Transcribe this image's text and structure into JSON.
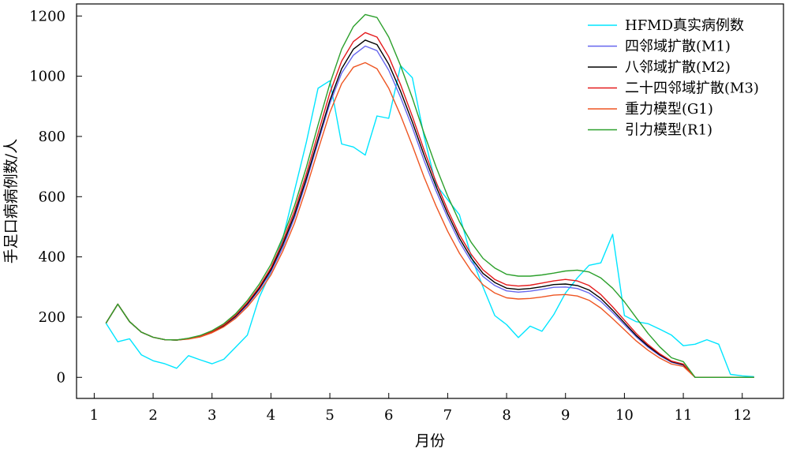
{
  "chart_data": {
    "type": "line",
    "xlabel": "月份",
    "ylabel": "手足口病病例数/人",
    "xlim": [
      0.7,
      12.7
    ],
    "ylim": [
      -70,
      1240
    ],
    "xticks": [
      1,
      2,
      3,
      4,
      5,
      6,
      7,
      8,
      9,
      10,
      11,
      12
    ],
    "yticks": [
      0,
      200,
      400,
      600,
      800,
      1000,
      1200
    ],
    "legend_position": "top-right",
    "grid": false,
    "x": [
      1.2,
      1.4,
      1.6,
      1.8,
      2.0,
      2.2,
      2.4,
      2.6,
      2.8,
      3.0,
      3.2,
      3.4,
      3.6,
      3.8,
      4.0,
      4.2,
      4.4,
      4.6,
      4.8,
      5.0,
      5.2,
      5.4,
      5.6,
      5.8,
      6.0,
      6.2,
      6.4,
      6.6,
      6.8,
      7.0,
      7.2,
      7.4,
      7.6,
      7.8,
      8.0,
      8.2,
      8.4,
      8.6,
      8.8,
      9.0,
      9.2,
      9.4,
      9.6,
      9.8,
      10.0,
      10.2,
      10.4,
      10.6,
      10.8,
      11.0,
      11.2,
      11.4,
      11.6,
      11.8,
      12.0,
      12.2
    ],
    "series": [
      {
        "name": "HFMD真实病例数",
        "color": "#00e5ff",
        "values": [
          180,
          118,
          128,
          75,
          55,
          45,
          30,
          72,
          58,
          45,
          60,
          100,
          140,
          265,
          350,
          460,
          620,
          780,
          960,
          985,
          775,
          765,
          738,
          868,
          860,
          1035,
          995,
          800,
          640,
          590,
          540,
          400,
          300,
          205,
          175,
          132,
          170,
          153,
          208,
          280,
          330,
          372,
          380,
          475,
          205,
          185,
          178,
          160,
          140,
          105,
          110,
          125,
          110,
          10,
          5,
          2
        ]
      },
      {
        "name": "四邻域扩散(M1)",
        "color": "#6666ee",
        "values": [
          180,
          243,
          185,
          150,
          133,
          125,
          124,
          128,
          135,
          150,
          170,
          200,
          240,
          290,
          350,
          430,
          530,
          650,
          780,
          910,
          1010,
          1070,
          1100,
          1085,
          1020,
          930,
          830,
          720,
          620,
          530,
          450,
          385,
          335,
          305,
          287,
          283,
          286,
          292,
          299,
          300,
          295,
          280,
          252,
          215,
          175,
          135,
          100,
          72,
          50,
          40,
          0,
          0,
          0,
          0,
          0,
          0
        ]
      },
      {
        "name": "八邻域扩散(M2)",
        "color": "#000000",
        "values": [
          180,
          243,
          185,
          150,
          133,
          125,
          124,
          128,
          136,
          151,
          172,
          203,
          244,
          295,
          357,
          440,
          540,
          660,
          790,
          920,
          1025,
          1090,
          1120,
          1105,
          1040,
          950,
          848,
          738,
          635,
          543,
          462,
          396,
          345,
          315,
          296,
          292,
          295,
          301,
          308,
          310,
          305,
          290,
          262,
          223,
          181,
          139,
          104,
          75,
          52,
          42,
          0,
          0,
          0,
          0,
          0,
          0
        ]
      },
      {
        "name": "二十四邻域扩散(M3)",
        "color": "#e41a1c",
        "values": [
          180,
          243,
          185,
          150,
          133,
          125,
          124,
          129,
          137,
          152,
          174,
          206,
          248,
          300,
          364,
          450,
          553,
          675,
          810,
          945,
          1050,
          1115,
          1145,
          1130,
          1065,
          972,
          867,
          755,
          650,
          556,
          474,
          408,
          357,
          325,
          307,
          303,
          306,
          313,
          320,
          325,
          320,
          305,
          275,
          234,
          190,
          146,
          109,
          78,
          54,
          44,
          0,
          0,
          0,
          0,
          0,
          0
        ]
      },
      {
        "name": "重力模型(G1)",
        "color": "#ee5522",
        "values": [
          180,
          243,
          185,
          150,
          133,
          125,
          124,
          127,
          134,
          148,
          168,
          196,
          234,
          282,
          340,
          418,
          512,
          628,
          755,
          880,
          975,
          1030,
          1045,
          1025,
          960,
          870,
          770,
          665,
          570,
          485,
          412,
          353,
          307,
          280,
          264,
          260,
          262,
          267,
          273,
          275,
          270,
          256,
          230,
          195,
          158,
          121,
          90,
          64,
          44,
          36,
          0,
          0,
          0,
          0,
          0,
          0
        ]
      },
      {
        "name": "引力模型(R1)",
        "color": "#2ca02c",
        "values": [
          180,
          243,
          185,
          150,
          133,
          125,
          124,
          130,
          139,
          155,
          178,
          211,
          255,
          309,
          375,
          464,
          570,
          697,
          838,
          975,
          1090,
          1165,
          1205,
          1195,
          1130,
          1035,
          928,
          810,
          700,
          602,
          517,
          448,
          395,
          363,
          342,
          336,
          336,
          340,
          346,
          353,
          356,
          350,
          330,
          296,
          251,
          198,
          146,
          101,
          65,
          52,
          0,
          0,
          0,
          0,
          0,
          0
        ]
      }
    ]
  }
}
